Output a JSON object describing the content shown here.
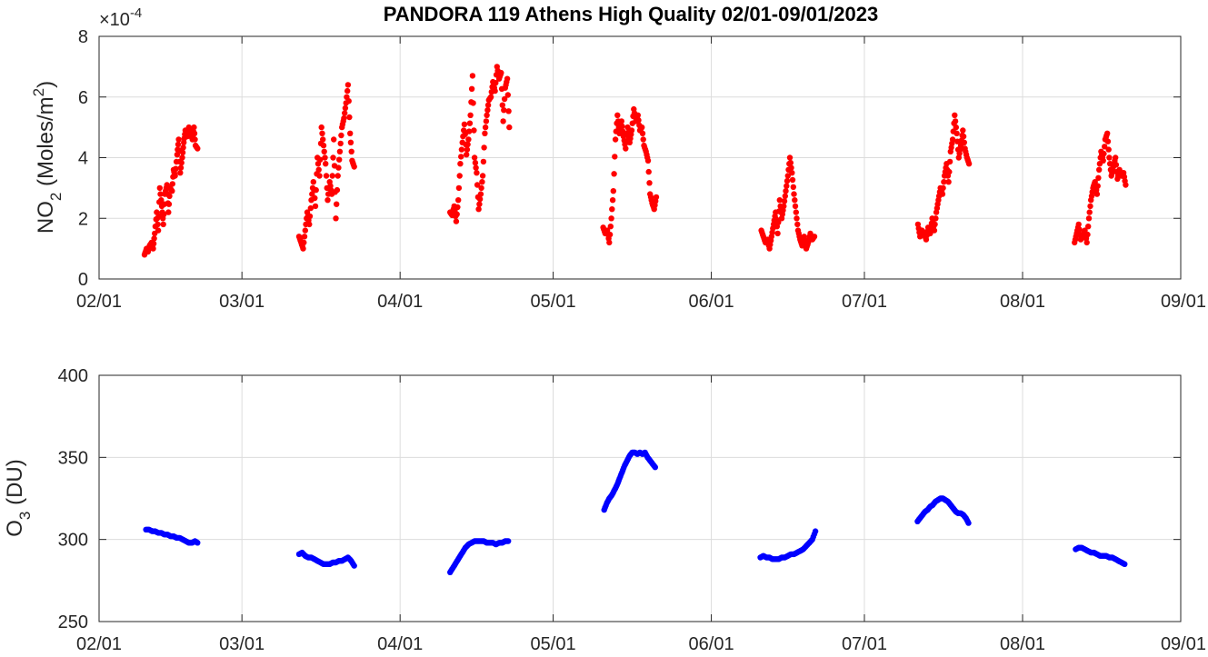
{
  "title": "PANDORA 119 Athens High Quality 02/01-09/01/2023",
  "chart_data": [
    {
      "type": "scatter",
      "name": "no2-panel",
      "ylabel_parts": [
        "NO",
        "2",
        " (Moles/m",
        "2",
        ")"
      ],
      "ylim": [
        0,
        8
      ],
      "yticks": [
        0,
        2,
        4,
        6,
        8
      ],
      "y_exponent_text": "×10",
      "y_exponent_power": "-4",
      "xlim": [
        0,
        212
      ],
      "xticks": [
        {
          "label": "02/01",
          "day": 0
        },
        {
          "label": "03/01",
          "day": 28
        },
        {
          "label": "04/01",
          "day": 59
        },
        {
          "label": "05/01",
          "day": 89
        },
        {
          "label": "06/01",
          "day": 120
        },
        {
          "label": "07/01",
          "day": 150
        },
        {
          "label": "08/01",
          "day": 181
        },
        {
          "label": "09/01",
          "day": 212
        }
      ],
      "grid": true,
      "color": "#ff0000",
      "segments": [
        {
          "x": [
            8.9,
            9.3,
            9.6,
            9.9,
            10.3,
            10.6,
            10.9,
            11.3,
            11.6,
            11.9,
            12.3,
            12.6,
            12.9,
            13.3,
            13.6,
            13.9,
            14.3,
            14.6,
            14.9,
            15.3,
            15.6,
            15.9,
            16.3,
            16.6,
            16.9,
            17.3,
            17.6,
            17.9,
            18.3,
            18.6,
            18.9,
            19.3
          ],
          "y": [
            0.8,
            1.0,
            0.9,
            1.1,
            1.2,
            1.0,
            1.5,
            2.2,
            1.6,
            3.0,
            2.4,
            1.8,
            2.8,
            3.1,
            2.2,
            3.0,
            2.9,
            3.6,
            3.4,
            4.1,
            4.6,
            3.5,
            4.0,
            4.5,
            4.9,
            4.7,
            5.0,
            4.8,
            4.6,
            5.0,
            4.4,
            4.3
          ]
        },
        {
          "x": [
            39.2,
            39.6,
            40.0,
            40.4,
            40.8,
            41.2,
            41.6,
            42.0,
            42.4,
            42.8,
            43.2,
            43.6,
            44.0,
            44.4,
            44.8,
            45.2,
            45.6,
            46.0,
            46.4,
            46.8,
            47.2,
            47.6,
            48.0,
            48.4,
            48.8,
            49.2,
            49.6,
            50.0
          ],
          "y": [
            1.4,
            1.2,
            1.0,
            1.6,
            2.2,
            1.8,
            2.6,
            3.2,
            2.4,
            4.0,
            3.4,
            5.0,
            4.4,
            3.8,
            2.6,
            3.2,
            2.8,
            4.6,
            2.0,
            3.4,
            4.2,
            5.0,
            5.3,
            5.8,
            6.4,
            4.8,
            3.9,
            3.7
          ]
        },
        {
          "x": [
            68.8,
            69.2,
            69.6,
            70.0,
            70.4,
            70.8,
            71.2,
            71.6,
            72.0,
            72.4,
            72.8,
            73.2,
            73.6,
            74.0,
            74.4,
            74.8,
            75.2,
            75.6,
            76.0,
            76.4,
            76.8,
            77.2,
            77.6,
            78.0,
            78.4,
            78.8,
            79.2,
            79.6,
            80.0,
            80.4
          ],
          "y": [
            2.2,
            2.1,
            2.4,
            1.9,
            2.6,
            3.8,
            4.5,
            5.1,
            4.1,
            4.6,
            5.4,
            6.7,
            4.0,
            3.5,
            2.3,
            2.8,
            3.4,
            4.8,
            5.4,
            5.9,
            6.0,
            6.5,
            6.2,
            7.0,
            6.6,
            6.8,
            5.2,
            6.3,
            6.6,
            5.0
          ]
        },
        {
          "x": [
            98.8,
            99.2,
            99.6,
            100.0,
            100.4,
            100.8,
            101.2,
            101.6,
            102.0,
            102.4,
            102.8,
            103.2,
            103.6,
            104.0,
            104.4,
            104.8,
            105.2,
            105.6,
            106.0,
            106.4,
            106.8,
            107.2,
            107.6,
            108.0,
            108.4,
            108.8,
            109.2
          ],
          "y": [
            1.7,
            1.5,
            1.6,
            1.2,
            2.0,
            2.9,
            4.6,
            5.4,
            4.8,
            5.2,
            4.7,
            4.3,
            5.0,
            4.5,
            4.9,
            5.6,
            5.2,
            5.4,
            4.9,
            5.0,
            4.4,
            4.2,
            3.9,
            2.8,
            2.5,
            2.3,
            2.7
          ]
        },
        {
          "x": [
            129.8,
            130.2,
            130.6,
            131.0,
            131.4,
            131.8,
            132.2,
            132.6,
            133.0,
            133.4,
            133.8,
            134.2,
            134.6,
            135.0,
            135.4,
            135.8,
            136.2,
            136.6,
            137.0,
            137.4,
            137.8,
            138.2,
            138.6,
            139.0,
            139.4,
            139.8,
            140.2
          ],
          "y": [
            1.6,
            1.4,
            1.2,
            1.3,
            1.0,
            1.4,
            1.8,
            2.2,
            1.5,
            2.6,
            2.0,
            2.4,
            2.9,
            3.4,
            4.0,
            3.5,
            2.8,
            2.2,
            1.6,
            1.3,
            1.1,
            1.4,
            1.0,
            1.2,
            1.5,
            1.3,
            1.4
          ]
        },
        {
          "x": [
            160.5,
            160.9,
            161.3,
            161.7,
            162.1,
            162.5,
            162.9,
            163.3,
            163.7,
            164.1,
            164.5,
            164.9,
            165.3,
            165.7,
            166.1,
            166.5,
            166.9,
            167.3,
            167.7,
            168.1,
            168.5,
            168.9,
            169.3,
            169.7,
            170.1,
            170.5
          ],
          "y": [
            1.8,
            1.4,
            1.6,
            1.5,
            1.3,
            1.7,
            1.5,
            2.0,
            1.6,
            2.2,
            2.6,
            3.0,
            2.8,
            3.4,
            3.8,
            3.2,
            4.2,
            4.6,
            5.4,
            4.8,
            4.0,
            4.4,
            4.9,
            4.3,
            4.0,
            3.8
          ]
        },
        {
          "x": [
            191.2,
            191.6,
            192.0,
            192.4,
            192.8,
            193.2,
            193.6,
            194.0,
            194.4,
            194.8,
            195.2,
            195.6,
            196.0,
            196.4,
            196.8,
            197.2,
            197.6,
            198.0,
            198.4,
            198.8,
            199.2,
            199.6,
            200.0,
            200.4,
            200.8,
            201.2
          ],
          "y": [
            1.2,
            1.5,
            1.8,
            1.3,
            1.4,
            1.6,
            1.2,
            2.0,
            2.6,
            3.0,
            3.2,
            2.8,
            3.6,
            4.2,
            3.9,
            4.6,
            4.8,
            4.0,
            3.4,
            3.7,
            4.0,
            3.3,
            3.6,
            3.4,
            3.5,
            3.1
          ]
        }
      ]
    },
    {
      "type": "scatter",
      "name": "o3-panel",
      "ylabel_parts": [
        "O",
        "3",
        " (DU)"
      ],
      "ylim": [
        250,
        400
      ],
      "yticks": [
        250,
        300,
        350,
        400
      ],
      "xlim": [
        0,
        212
      ],
      "xticks": [
        {
          "label": "02/01",
          "day": 0
        },
        {
          "label": "03/01",
          "day": 28
        },
        {
          "label": "04/01",
          "day": 59
        },
        {
          "label": "05/01",
          "day": 89
        },
        {
          "label": "06/01",
          "day": 120
        },
        {
          "label": "07/01",
          "day": 150
        },
        {
          "label": "08/01",
          "day": 181
        },
        {
          "label": "09/01",
          "day": 212
        }
      ],
      "grid": true,
      "color": "#0000ff",
      "segments": [
        {
          "x": [
            9.2,
            9.8,
            10.4,
            11.0,
            11.6,
            12.2,
            12.8,
            13.4,
            14.0,
            14.6,
            15.2,
            15.8,
            16.4,
            17.0,
            17.6,
            18.2,
            18.8,
            19.3
          ],
          "y": [
            306,
            306,
            305,
            305,
            304,
            304,
            303,
            303,
            302,
            302,
            301,
            301,
            300,
            299,
            298,
            298,
            299,
            298
          ]
        },
        {
          "x": [
            39.2,
            39.8,
            40.4,
            41.0,
            41.6,
            42.2,
            42.8,
            43.4,
            44.0,
            44.6,
            45.2,
            45.8,
            46.4,
            47.0,
            47.6,
            48.2,
            48.8,
            49.4,
            50.0
          ],
          "y": [
            291,
            292,
            290,
            289,
            289,
            288,
            287,
            286,
            285,
            285,
            285,
            286,
            286,
            287,
            287,
            288,
            289,
            287,
            284
          ]
        },
        {
          "x": [
            68.8,
            69.4,
            70.0,
            70.6,
            71.2,
            71.8,
            72.4,
            73.0,
            73.6,
            74.2,
            74.8,
            75.4,
            76.0,
            76.6,
            77.2,
            77.8,
            78.4,
            79.0,
            79.6,
            80.2
          ],
          "y": [
            280,
            283,
            286,
            289,
            292,
            295,
            297,
            298,
            299,
            299,
            299,
            299,
            298,
            298,
            298,
            297,
            298,
            298,
            299,
            299
          ]
        },
        {
          "x": [
            99.0,
            99.5,
            100.0,
            100.5,
            101.0,
            101.5,
            102.0,
            102.5,
            103.0,
            103.5,
            104.0,
            104.5,
            105.0,
            105.5,
            106.0,
            106.5,
            107.0,
            107.5,
            108.0,
            108.5,
            109.0
          ],
          "y": [
            318,
            322,
            325,
            327,
            330,
            333,
            337,
            341,
            345,
            348,
            351,
            353,
            353,
            352,
            353,
            352,
            353,
            350,
            348,
            346,
            344
          ]
        },
        {
          "x": [
            129.6,
            130.2,
            130.8,
            131.4,
            132.0,
            132.6,
            133.2,
            133.8,
            134.4,
            135.0,
            135.6,
            136.2,
            136.8,
            137.4,
            138.0,
            138.6,
            139.2,
            139.8,
            140.4
          ],
          "y": [
            289,
            290,
            289,
            289,
            288,
            288,
            288,
            289,
            289,
            290,
            291,
            291,
            292,
            293,
            294,
            296,
            298,
            300,
            305
          ]
        },
        {
          "x": [
            160.4,
            160.9,
            161.4,
            161.9,
            162.4,
            162.9,
            163.4,
            163.9,
            164.4,
            164.9,
            165.4,
            165.9,
            166.4,
            166.9,
            167.4,
            167.9,
            168.4,
            168.9,
            169.4,
            169.9,
            170.4
          ],
          "y": [
            311,
            313,
            315,
            317,
            318,
            320,
            321,
            323,
            324,
            325,
            325,
            324,
            323,
            321,
            319,
            317,
            316,
            316,
            315,
            313,
            310
          ]
        },
        {
          "x": [
            191.4,
            192.0,
            192.6,
            193.2,
            193.8,
            194.4,
            195.0,
            195.6,
            196.2,
            196.8,
            197.4,
            198.0,
            198.6,
            199.2,
            199.8,
            200.4,
            201.0
          ],
          "y": [
            294,
            295,
            295,
            294,
            293,
            292,
            292,
            291,
            290,
            290,
            290,
            289,
            289,
            288,
            287,
            286,
            285
          ]
        }
      ]
    }
  ]
}
